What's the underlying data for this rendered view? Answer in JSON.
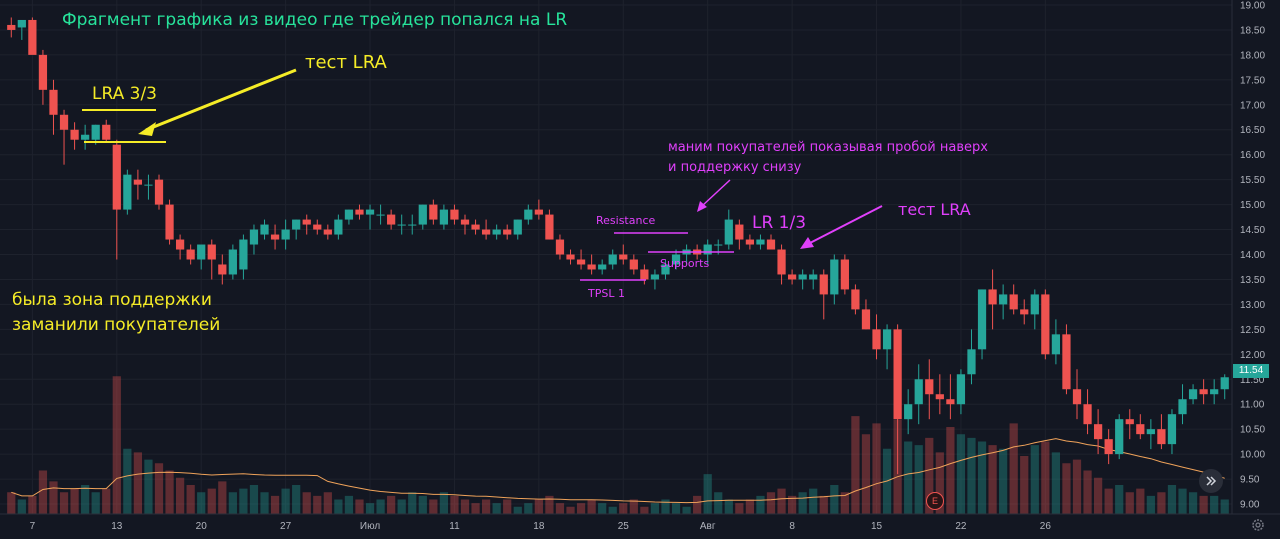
{
  "chart_data": {
    "type": "candlestick",
    "y_axis": {
      "position": "right",
      "ticks": [
        "19.00",
        "18.50",
        "18.00",
        "17.50",
        "17.00",
        "16.50",
        "16.00",
        "15.50",
        "15.00",
        "14.50",
        "14.00",
        "13.50",
        "13.00",
        "12.50",
        "12.00",
        "11.50",
        "11.00",
        "10.50",
        "10.00",
        "9.50",
        "9.00"
      ],
      "range": [
        8.8,
        19.1
      ]
    },
    "x_axis": {
      "ticks": [
        {
          "i": 2,
          "label": "7"
        },
        {
          "i": 10,
          "label": "13"
        },
        {
          "i": 18,
          "label": "20"
        },
        {
          "i": 26,
          "label": "27"
        },
        {
          "i": 34,
          "label": "Июл"
        },
        {
          "i": 42,
          "label": "11"
        },
        {
          "i": 50,
          "label": "18"
        },
        {
          "i": 58,
          "label": "25"
        },
        {
          "i": 66,
          "label": "Авг"
        },
        {
          "i": 74,
          "label": "8"
        },
        {
          "i": 82,
          "label": "15"
        },
        {
          "i": 90,
          "label": "22"
        },
        {
          "i": 98,
          "label": "26"
        }
      ]
    },
    "last_price": "11.54",
    "colors": {
      "up": "#26a69a",
      "down": "#ef5350",
      "ma": "#f0a35a",
      "grid": "#1e222d",
      "text": "#b2b5be"
    },
    "candles": [
      [
        18.6,
        18.75,
        18.35,
        18.5
      ],
      [
        18.55,
        18.65,
        18.3,
        18.7
      ],
      [
        18.7,
        18.75,
        18.05,
        18.0
      ],
      [
        18.0,
        18.1,
        17.0,
        17.3
      ],
      [
        17.3,
        17.5,
        16.4,
        16.8
      ],
      [
        16.8,
        16.9,
        15.8,
        16.5
      ],
      [
        16.5,
        16.65,
        16.1,
        16.3
      ],
      [
        16.3,
        16.6,
        16.1,
        16.4
      ],
      [
        16.3,
        16.6,
        16.2,
        16.6
      ],
      [
        16.6,
        16.7,
        16.25,
        16.3
      ],
      [
        16.2,
        16.3,
        13.9,
        14.9
      ],
      [
        14.9,
        15.7,
        14.8,
        15.6
      ],
      [
        15.5,
        15.7,
        15.1,
        15.4
      ],
      [
        15.4,
        15.6,
        15.1,
        15.4
      ],
      [
        15.5,
        15.6,
        14.9,
        15.0
      ],
      [
        15.0,
        15.1,
        14.2,
        14.3
      ],
      [
        14.3,
        14.4,
        13.9,
        14.1
      ],
      [
        14.1,
        14.2,
        13.8,
        13.9
      ],
      [
        13.9,
        14.1,
        13.7,
        14.2
      ],
      [
        14.2,
        14.3,
        13.5,
        13.9
      ],
      [
        13.8,
        14.0,
        13.4,
        13.6
      ],
      [
        13.6,
        14.2,
        13.5,
        14.1
      ],
      [
        13.7,
        14.4,
        13.5,
        14.3
      ],
      [
        14.2,
        14.6,
        14.0,
        14.5
      ],
      [
        14.4,
        14.7,
        14.3,
        14.6
      ],
      [
        14.4,
        14.6,
        14.1,
        14.3
      ],
      [
        14.3,
        14.7,
        14.1,
        14.5
      ],
      [
        14.5,
        14.7,
        14.3,
        14.7
      ],
      [
        14.7,
        14.8,
        14.4,
        14.6
      ],
      [
        14.6,
        14.7,
        14.4,
        14.5
      ],
      [
        14.5,
        14.6,
        14.3,
        14.4
      ],
      [
        14.4,
        14.8,
        14.3,
        14.7
      ],
      [
        14.7,
        14.9,
        14.6,
        14.9
      ],
      [
        14.9,
        15.0,
        14.7,
        14.8
      ],
      [
        14.8,
        15.0,
        14.5,
        14.9
      ],
      [
        14.8,
        15.0,
        14.6,
        14.8
      ],
      [
        14.8,
        14.9,
        14.5,
        14.6
      ],
      [
        14.6,
        14.8,
        14.4,
        14.6
      ],
      [
        14.6,
        14.8,
        14.4,
        14.6
      ],
      [
        14.6,
        15.0,
        14.5,
        15.0
      ],
      [
        15.0,
        15.1,
        14.6,
        14.7
      ],
      [
        14.6,
        15.0,
        14.5,
        14.9
      ],
      [
        14.9,
        15.0,
        14.6,
        14.7
      ],
      [
        14.7,
        14.8,
        14.4,
        14.6
      ],
      [
        14.6,
        14.7,
        14.4,
        14.5
      ],
      [
        14.5,
        14.7,
        14.3,
        14.4
      ],
      [
        14.4,
        14.6,
        14.3,
        14.5
      ],
      [
        14.5,
        14.6,
        14.3,
        14.4
      ],
      [
        14.4,
        14.7,
        14.3,
        14.7
      ],
      [
        14.7,
        15.0,
        14.6,
        14.9
      ],
      [
        14.9,
        15.1,
        14.7,
        14.8
      ],
      [
        14.8,
        14.9,
        14.3,
        14.3
      ],
      [
        14.3,
        14.4,
        13.9,
        14.0
      ],
      [
        14.0,
        14.1,
        13.8,
        13.9
      ],
      [
        13.9,
        14.1,
        13.7,
        13.8
      ],
      [
        13.8,
        14.0,
        13.6,
        13.7
      ],
      [
        13.7,
        13.9,
        13.6,
        13.8
      ],
      [
        13.8,
        14.1,
        13.7,
        14.0
      ],
      [
        14.0,
        14.2,
        13.8,
        13.9
      ],
      [
        13.9,
        14.0,
        13.6,
        13.7
      ],
      [
        13.7,
        13.8,
        13.4,
        13.5
      ],
      [
        13.5,
        13.7,
        13.3,
        13.6
      ],
      [
        13.6,
        13.9,
        13.5,
        13.8
      ],
      [
        13.8,
        14.1,
        13.7,
        14.0
      ],
      [
        14.0,
        14.2,
        13.8,
        14.1
      ],
      [
        14.1,
        14.2,
        13.9,
        14.0
      ],
      [
        14.0,
        14.3,
        13.8,
        14.2
      ],
      [
        14.2,
        14.3,
        14.0,
        14.2
      ],
      [
        14.2,
        14.9,
        14.1,
        14.7
      ],
      [
        14.6,
        14.7,
        14.1,
        14.3
      ],
      [
        14.3,
        14.4,
        14.1,
        14.2
      ],
      [
        14.2,
        14.4,
        14.1,
        14.3
      ],
      [
        14.3,
        14.4,
        14.1,
        14.1
      ],
      [
        14.1,
        14.2,
        13.4,
        13.6
      ],
      [
        13.6,
        13.7,
        13.4,
        13.5
      ],
      [
        13.5,
        13.7,
        13.3,
        13.6
      ],
      [
        13.5,
        13.7,
        13.3,
        13.6
      ],
      [
        13.6,
        13.7,
        12.7,
        13.2
      ],
      [
        13.2,
        14.0,
        13.0,
        13.9
      ],
      [
        13.9,
        14.0,
        13.2,
        13.3
      ],
      [
        13.3,
        13.4,
        12.8,
        12.9
      ],
      [
        12.9,
        13.1,
        12.5,
        12.5
      ],
      [
        12.5,
        12.8,
        11.9,
        12.1
      ],
      [
        12.1,
        12.6,
        11.7,
        12.5
      ],
      [
        12.5,
        12.6,
        9.6,
        10.7
      ],
      [
        10.7,
        11.3,
        10.4,
        11.0
      ],
      [
        11.0,
        11.8,
        10.6,
        11.5
      ],
      [
        11.5,
        11.9,
        10.7,
        11.2
      ],
      [
        11.2,
        11.6,
        10.8,
        11.1
      ],
      [
        11.1,
        11.6,
        10.7,
        11.0
      ],
      [
        11.0,
        11.7,
        10.8,
        11.6
      ],
      [
        11.6,
        12.5,
        11.4,
        12.1
      ],
      [
        12.1,
        13.3,
        11.9,
        13.3
      ],
      [
        13.3,
        13.7,
        12.5,
        13.0
      ],
      [
        13.0,
        13.4,
        12.7,
        13.2
      ],
      [
        13.2,
        13.4,
        12.8,
        12.9
      ],
      [
        12.9,
        13.1,
        12.6,
        12.8
      ],
      [
        12.8,
        13.3,
        12.5,
        13.2
      ],
      [
        13.2,
        13.3,
        11.9,
        12.0
      ],
      [
        12.0,
        12.7,
        11.8,
        12.4
      ],
      [
        12.4,
        12.6,
        11.2,
        11.3
      ],
      [
        11.3,
        11.7,
        10.7,
        11.0
      ],
      [
        11.0,
        11.3,
        10.4,
        10.6
      ],
      [
        10.6,
        10.9,
        10.0,
        10.3
      ],
      [
        10.3,
        10.5,
        9.8,
        10.0
      ],
      [
        10.0,
        10.8,
        9.9,
        10.7
      ],
      [
        10.7,
        10.9,
        10.3,
        10.6
      ],
      [
        10.6,
        10.8,
        10.3,
        10.4
      ],
      [
        10.4,
        10.7,
        10.1,
        10.5
      ],
      [
        10.5,
        10.8,
        10.1,
        10.2
      ],
      [
        10.2,
        10.9,
        10.0,
        10.8
      ],
      [
        10.8,
        11.4,
        10.6,
        11.1
      ],
      [
        11.1,
        11.4,
        11.0,
        11.3
      ],
      [
        11.3,
        11.5,
        11.0,
        11.2
      ],
      [
        11.2,
        11.5,
        11.0,
        11.3
      ],
      [
        11.3,
        11.6,
        11.1,
        11.54
      ]
    ],
    "volume": [
      0.3,
      0.2,
      0.25,
      0.6,
      0.45,
      0.3,
      0.35,
      0.4,
      0.3,
      0.35,
      1.9,
      0.9,
      0.85,
      0.75,
      0.7,
      0.6,
      0.5,
      0.4,
      0.3,
      0.35,
      0.45,
      0.3,
      0.35,
      0.4,
      0.3,
      0.25,
      0.35,
      0.4,
      0.3,
      0.25,
      0.3,
      0.2,
      0.25,
      0.2,
      0.15,
      0.2,
      0.25,
      0.2,
      0.3,
      0.25,
      0.2,
      0.3,
      0.25,
      0.2,
      0.15,
      0.2,
      0.15,
      0.2,
      0.1,
      0.15,
      0.2,
      0.25,
      0.15,
      0.1,
      0.15,
      0.2,
      0.15,
      0.1,
      0.15,
      0.2,
      0.1,
      0.15,
      0.2,
      0.15,
      0.1,
      0.25,
      0.55,
      0.3,
      0.2,
      0.15,
      0.2,
      0.25,
      0.3,
      0.35,
      0.25,
      0.3,
      0.35,
      0.25,
      0.4,
      0.3,
      1.35,
      1.1,
      1.25,
      0.9,
      1.3,
      1.0,
      0.95,
      1.05,
      0.85,
      1.2,
      1.1,
      1.05,
      1.0,
      0.95,
      0.9,
      1.25,
      0.8,
      0.95,
      1.0,
      0.85,
      0.7,
      0.75,
      0.6,
      0.5,
      0.35,
      0.4,
      0.3,
      0.35,
      0.25,
      0.3,
      0.4,
      0.35,
      0.3,
      0.25,
      0.25,
      0.2
    ]
  },
  "annotations": {
    "title": "Фрагмент графика из видео где трейдер попался на LR",
    "test_lra_1": "тест LRA",
    "lra_33": "LRA 3/3",
    "support_zone_line1": "была зона поддержки",
    "support_zone_line2": "заманили покупателей",
    "manipulation_line1": "маним покупателей показывая пробой наверх",
    "manipulation_line2": "и поддержку снизу",
    "resistance": "Resistance",
    "supports": "Supports",
    "tpsl": "TPSL 1",
    "lr_13": "LR 1/3",
    "test_lra_2": "тест LRA"
  },
  "ui": {
    "event_badge": "E",
    "scroll_btn_icon": "double-chevron-right-icon",
    "settings_icon": "gear-icon"
  }
}
